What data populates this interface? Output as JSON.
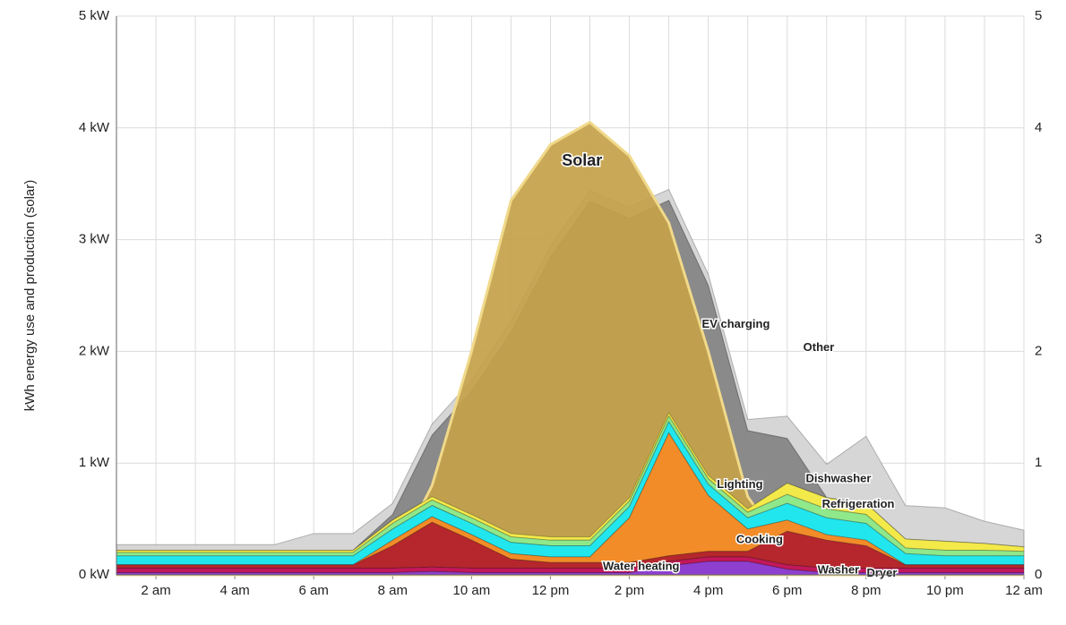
{
  "chart_data": {
    "type": "stacked_area",
    "y_label": "kWh energy use and production (solar)",
    "x": [
      1,
      2,
      3,
      4,
      5,
      6,
      7,
      8,
      9,
      10,
      11,
      12,
      13,
      14,
      15,
      16,
      17,
      18,
      19,
      20,
      21,
      22,
      23,
      24
    ],
    "xlim": [
      1,
      24
    ],
    "xticks": [
      {
        "value": 2,
        "label": "2 am"
      },
      {
        "value": 4,
        "label": "4 am"
      },
      {
        "value": 6,
        "label": "6 am"
      },
      {
        "value": 8,
        "label": "8 am"
      },
      {
        "value": 10,
        "label": "10 am"
      },
      {
        "value": 12,
        "label": "12 pm"
      },
      {
        "value": 14,
        "label": "2 pm"
      },
      {
        "value": 16,
        "label": "4 pm"
      },
      {
        "value": 18,
        "label": "6 pm"
      },
      {
        "value": 20,
        "label": "8 pm"
      },
      {
        "value": 22,
        "label": "10 pm"
      },
      {
        "value": 24,
        "label": "12 am"
      }
    ],
    "ylim": [
      0,
      5
    ],
    "yticks": [
      {
        "value": 0,
        "label": "0 kW"
      },
      {
        "value": 1,
        "label": "1 kW"
      },
      {
        "value": 2,
        "label": "2 kW"
      },
      {
        "value": 3,
        "label": "3 kW"
      },
      {
        "value": 4,
        "label": "4 kW"
      },
      {
        "value": 5,
        "label": "5 kW"
      }
    ],
    "y2lim": [
      0,
      5
    ],
    "y2ticks": [
      0,
      1,
      2,
      3,
      4,
      5
    ],
    "grid": true,
    "series": [
      {
        "name": "Dryer",
        "color": "#8e3fd0",
        "values": [
          0.02,
          0.02,
          0.02,
          0.02,
          0.02,
          0.02,
          0.02,
          0.02,
          0.03,
          0.02,
          0.02,
          0.02,
          0.02,
          0.02,
          0.08,
          0.12,
          0.12,
          0.05,
          0.02,
          0.02,
          0.02,
          0.02,
          0.02,
          0.02
        ]
      },
      {
        "name": "Washer",
        "color": "#c2185b",
        "values": [
          0.04,
          0.04,
          0.04,
          0.04,
          0.04,
          0.04,
          0.04,
          0.04,
          0.04,
          0.04,
          0.04,
          0.04,
          0.04,
          0.04,
          0.04,
          0.04,
          0.04,
          0.04,
          0.04,
          0.04,
          0.04,
          0.04,
          0.04,
          0.04
        ]
      },
      {
        "name": "Water heating",
        "color": "#b5272d",
        "values": [
          0.03,
          0.03,
          0.03,
          0.03,
          0.03,
          0.03,
          0.03,
          0.2,
          0.4,
          0.25,
          0.08,
          0.05,
          0.05,
          0.05,
          0.05,
          0.05,
          0.05,
          0.3,
          0.25,
          0.2,
          0.03,
          0.03,
          0.03,
          0.03
        ]
      },
      {
        "name": "Cooking",
        "color": "#f28c28",
        "values": [
          0,
          0,
          0,
          0,
          0,
          0,
          0,
          0.05,
          0.05,
          0.05,
          0.05,
          0.05,
          0.05,
          0.4,
          1.1,
          0.5,
          0.2,
          0.1,
          0.05,
          0.05,
          0,
          0,
          0,
          0
        ]
      },
      {
        "name": "Refrigeration",
        "color": "#22e6ee",
        "values": [
          0.08,
          0.08,
          0.08,
          0.08,
          0.08,
          0.08,
          0.08,
          0.1,
          0.1,
          0.1,
          0.1,
          0.1,
          0.1,
          0.1,
          0.1,
          0.1,
          0.1,
          0.15,
          0.15,
          0.15,
          0.1,
          0.08,
          0.08,
          0.08
        ]
      },
      {
        "name": "Dishwasher",
        "color": "#8fe88a",
        "values": [
          0.03,
          0.03,
          0.03,
          0.03,
          0.03,
          0.03,
          0.03,
          0.05,
          0.05,
          0.05,
          0.05,
          0.05,
          0.05,
          0.05,
          0.05,
          0.05,
          0.05,
          0.08,
          0.08,
          0.08,
          0.05,
          0.05,
          0.05,
          0.04
        ]
      },
      {
        "name": "Lighting",
        "color": "#f3ea4a",
        "values": [
          0.02,
          0.02,
          0.02,
          0.02,
          0.02,
          0.02,
          0.02,
          0.03,
          0.03,
          0.03,
          0.03,
          0.03,
          0.03,
          0.03,
          0.03,
          0.03,
          0.03,
          0.1,
          0.1,
          0.1,
          0.08,
          0.08,
          0.06,
          0.04
        ]
      },
      {
        "name": "EV charging",
        "color": "#8a8a8a",
        "values": [
          0,
          0,
          0,
          0,
          0,
          0,
          0,
          0.05,
          0.55,
          1.1,
          1.8,
          2.5,
          3.0,
          2.5,
          1.9,
          1.7,
          0.7,
          0.4,
          0,
          0,
          0,
          0,
          0,
          0
        ]
      },
      {
        "name": "Other",
        "color": "#d6d6d6",
        "values": [
          0.05,
          0.05,
          0.05,
          0.05,
          0.05,
          0.15,
          0.15,
          0.1,
          0.1,
          0.1,
          0.1,
          0.1,
          0.1,
          0.1,
          0.1,
          0.1,
          0.1,
          0.2,
          0.3,
          0.6,
          0.3,
          0.3,
          0.2,
          0.15
        ]
      }
    ],
    "solar": {
      "name": "Solar",
      "color": "#c4a24a",
      "values": [
        0,
        0,
        0,
        0,
        0,
        0,
        0,
        0.1,
        0.8,
        2.0,
        3.35,
        3.85,
        4.05,
        3.75,
        3.15,
        2.0,
        0.7,
        0.2,
        0,
        0,
        0,
        0,
        0,
        0
      ]
    }
  }
}
